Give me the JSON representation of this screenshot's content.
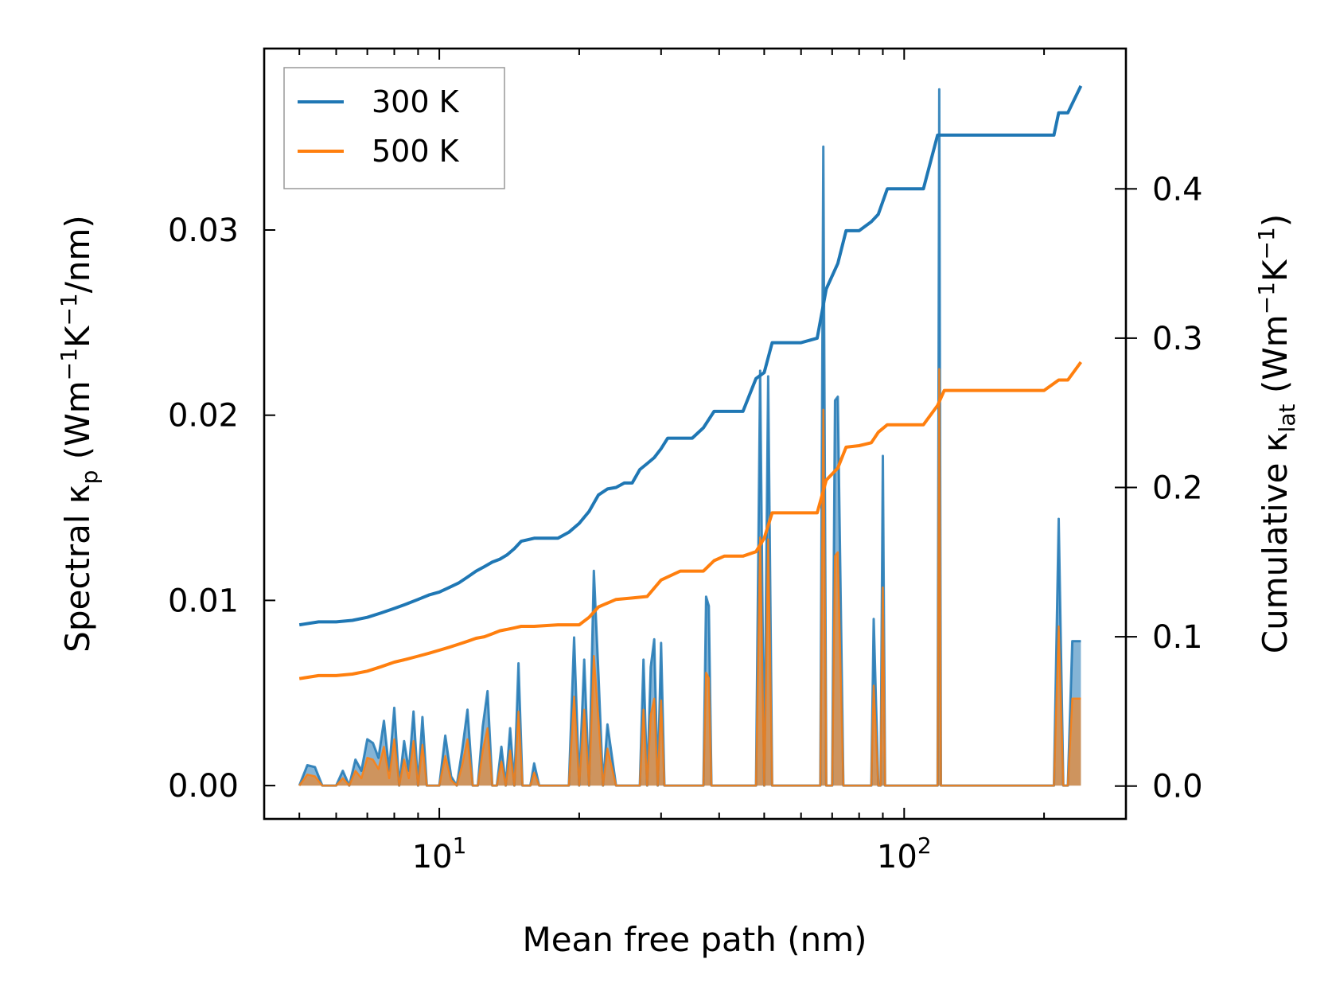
{
  "chart_data": {
    "type": "line",
    "xscale": "log",
    "xlim": [
      4.2,
      300
    ],
    "ylim_left": [
      -0.0018,
      0.0398
    ],
    "ylim_right": [
      -0.022,
      0.494
    ],
    "xlabel": "Mean free path (nm)",
    "ylabel_left": {
      "main": "Spectral κ",
      "sub": "p",
      "unit_prefix": " (Wm",
      "exp1": "−1",
      "unit_mid": "K",
      "exp2": "−1",
      "unit_suffix": "/nm)"
    },
    "ylabel_right": {
      "main": "Cumulative κ",
      "sub": "lat",
      "unit_prefix": " (Wm",
      "exp1": "−1",
      "unit_mid": "K",
      "exp2": "−1",
      "unit_suffix": ")"
    },
    "x_ticks": [
      {
        "value": 10,
        "base": "10",
        "exp": "1"
      },
      {
        "value": 100,
        "base": "10",
        "exp": "2"
      }
    ],
    "y_ticks_left": [
      {
        "value": 0.0,
        "label": "0.00"
      },
      {
        "value": 0.01,
        "label": "0.01"
      },
      {
        "value": 0.02,
        "label": "0.02"
      },
      {
        "value": 0.03,
        "label": "0.03"
      }
    ],
    "y_ticks_right": [
      {
        "value": 0.0,
        "label": "0.0"
      },
      {
        "value": 0.1,
        "label": "0.1"
      },
      {
        "value": 0.2,
        "label": "0.2"
      },
      {
        "value": 0.3,
        "label": "0.3"
      },
      {
        "value": 0.4,
        "label": "0.4"
      }
    ],
    "legend": {
      "position": "upper-left",
      "entries": [
        "300 K",
        "500 K"
      ]
    },
    "colors": {
      "300 K": "#1f77b4",
      "500 K": "#ff7f0e",
      "fill_300": "#1f77b4",
      "fill_500": "#ff7f0e"
    },
    "series": [
      {
        "name": "300 K",
        "axis": "right",
        "kind": "cumulative",
        "x": [
          5.0,
          5.5,
          6.0,
          6.5,
          7.0,
          7.5,
          8.0,
          8.5,
          9.0,
          9.5,
          10.0,
          10.5,
          11.0,
          11.5,
          12.0,
          12.5,
          13.0,
          13.5,
          14.0,
          14.5,
          15.0,
          15.5,
          16.0,
          17.0,
          18.0,
          19.0,
          20.0,
          21.0,
          22.0,
          23.0,
          24.0,
          25.0,
          26.0,
          27.0,
          28.0,
          29.0,
          30.0,
          31.0,
          33.0,
          35.0,
          37.0,
          39.0,
          41.0,
          43.0,
          45.0,
          48.0,
          50.0,
          52.0,
          55.0,
          60.0,
          65.0,
          68.0,
          72.0,
          75.0,
          80.0,
          85.0,
          88.0,
          92.0,
          100.0,
          110.0,
          118.0,
          122.0,
          130.0,
          150.0,
          180.0,
          210.0,
          215.0,
          225.0,
          240.0
        ],
        "values": [
          0.108,
          0.11,
          0.11,
          0.111,
          0.113,
          0.116,
          0.119,
          0.122,
          0.125,
          0.128,
          0.13,
          0.133,
          0.136,
          0.14,
          0.144,
          0.147,
          0.15,
          0.152,
          0.155,
          0.159,
          0.164,
          0.165,
          0.166,
          0.166,
          0.166,
          0.17,
          0.176,
          0.184,
          0.195,
          0.199,
          0.2,
          0.203,
          0.203,
          0.212,
          0.216,
          0.22,
          0.226,
          0.233,
          0.233,
          0.233,
          0.24,
          0.251,
          0.251,
          0.251,
          0.251,
          0.273,
          0.277,
          0.297,
          0.297,
          0.297,
          0.3,
          0.333,
          0.35,
          0.372,
          0.372,
          0.378,
          0.383,
          0.4,
          0.4,
          0.4,
          0.436,
          0.436,
          0.436,
          0.436,
          0.436,
          0.436,
          0.451,
          0.451,
          0.469
        ]
      },
      {
        "name": "500 K",
        "axis": "right",
        "kind": "cumulative",
        "x": [
          5.0,
          5.5,
          6.0,
          6.5,
          7.0,
          7.5,
          8.0,
          8.5,
          9.0,
          9.5,
          10.0,
          10.5,
          11.0,
          11.5,
          12.0,
          12.5,
          13.0,
          13.5,
          14.0,
          14.5,
          15.0,
          16.0,
          18.0,
          20.0,
          21.0,
          22.0,
          24.0,
          26.0,
          28.0,
          30.0,
          33.0,
          37.0,
          39.0,
          41.0,
          45.0,
          48.0,
          50.0,
          52.0,
          55.0,
          60.0,
          65.0,
          68.0,
          72.0,
          75.0,
          80.0,
          85.0,
          88.0,
          92.0,
          100.0,
          110.0,
          118.0,
          122.0,
          150.0,
          200.0,
          215.0,
          225.0,
          240.0
        ],
        "values": [
          0.072,
          0.074,
          0.074,
          0.075,
          0.077,
          0.08,
          0.083,
          0.085,
          0.087,
          0.089,
          0.091,
          0.093,
          0.095,
          0.097,
          0.099,
          0.1,
          0.102,
          0.104,
          0.105,
          0.106,
          0.107,
          0.107,
          0.108,
          0.108,
          0.113,
          0.12,
          0.125,
          0.126,
          0.127,
          0.138,
          0.144,
          0.144,
          0.151,
          0.154,
          0.154,
          0.157,
          0.166,
          0.183,
          0.183,
          0.183,
          0.183,
          0.205,
          0.213,
          0.227,
          0.228,
          0.23,
          0.237,
          0.242,
          0.242,
          0.242,
          0.255,
          0.265,
          0.265,
          0.265,
          0.272,
          0.272,
          0.284
        ]
      },
      {
        "name": "300 K",
        "axis": "left",
        "kind": "spectral",
        "x": [
          5.0,
          5.2,
          5.4,
          5.6,
          5.8,
          6.0,
          6.2,
          6.4,
          6.6,
          6.8,
          7.0,
          7.2,
          7.4,
          7.6,
          7.8,
          8.0,
          8.2,
          8.4,
          8.6,
          8.8,
          9.0,
          9.2,
          9.4,
          9.6,
          9.8,
          10.0,
          10.3,
          10.6,
          10.9,
          11.2,
          11.5,
          11.8,
          12.1,
          12.4,
          12.7,
          13.0,
          13.3,
          13.6,
          13.9,
          14.2,
          14.5,
          14.8,
          15.1,
          15.4,
          15.7,
          16.0,
          16.4,
          16.8,
          17.2,
          18.0,
          19.0,
          19.5,
          20.0,
          20.5,
          21.0,
          21.5,
          22.0,
          22.5,
          23.0,
          24.0,
          25.0,
          26.0,
          27.0,
          27.5,
          28.0,
          28.5,
          29.0,
          29.5,
          30.0,
          30.5,
          31.0,
          32.0,
          33.0,
          34.0,
          35.0,
          36.0,
          37.0,
          37.5,
          38.0,
          38.5,
          39.0,
          40.0,
          42.0,
          44.0,
          46.0,
          48.0,
          49.0,
          50.0,
          51.0,
          52.0,
          53.0,
          54.0,
          55.0,
          60.0,
          64.0,
          66.0,
          67.0,
          68.0,
          70.0,
          71.0,
          72.0,
          74.0,
          76.0,
          80.0,
          83.0,
          85.0,
          86.0,
          88.0,
          89.0,
          90.0,
          91.0,
          93.0,
          100.0,
          110.0,
          115.0,
          118.0,
          119.0,
          120.0,
          121.0,
          122.0,
          125.0,
          130.0,
          150.0,
          180.0,
          200.0,
          205.0,
          210.0,
          215.0,
          220.0,
          225.0,
          230.0,
          235.0,
          240.0
        ],
        "values": [
          0.0,
          0.0011,
          0.001,
          0.0,
          0.0,
          0.0,
          0.0008,
          0.0,
          0.0014,
          0.0008,
          0.0025,
          0.0023,
          0.0015,
          0.0035,
          0.0008,
          0.0042,
          0.0,
          0.0024,
          0.0008,
          0.004,
          0.0,
          0.0037,
          0.0,
          0.0,
          0.0,
          0.0,
          0.0027,
          0.0005,
          0.0,
          0.0019,
          0.0041,
          0.0,
          0.0,
          0.0032,
          0.0051,
          0.0,
          0.0,
          0.0021,
          0.0,
          0.0031,
          0.0,
          0.0066,
          0.0,
          0.0,
          0.0,
          0.0012,
          0.0,
          0.0,
          0.0,
          0.0,
          0.0,
          0.008,
          0.0,
          0.0068,
          0.0,
          0.0116,
          0.006,
          0.0,
          0.0033,
          0.0,
          0.0,
          0.0,
          0.0,
          0.0068,
          0.0,
          0.0064,
          0.0079,
          0.0,
          0.0077,
          0.0,
          0.0,
          0.0,
          0.0,
          0.0,
          0.0,
          0.0,
          0.0,
          0.0102,
          0.0097,
          0.0,
          0.0,
          0.0,
          0.0,
          0.0,
          0.0,
          0.0,
          0.0224,
          0.0,
          0.0221,
          0.0,
          0.0,
          0.0,
          0.0,
          0.0,
          0.0,
          0.0,
          0.0345,
          0.0,
          0.0,
          0.0208,
          0.021,
          0.0,
          0.0,
          0.0,
          0.0,
          0.0,
          0.009,
          0.0,
          0.0,
          0.0178,
          0.0,
          0.0,
          0.0,
          0.0,
          0.0,
          0.0,
          0.0376,
          0.0,
          0.0,
          0.0,
          0.0,
          0.0,
          0.0,
          0.0,
          0.0,
          0.0,
          0.0,
          0.0144,
          0.0,
          0.0,
          0.0078,
          0.0078,
          0.0078
        ]
      },
      {
        "name": "500 K",
        "axis": "left",
        "kind": "spectral",
        "x": [
          5.0,
          5.2,
          5.4,
          5.6,
          5.8,
          6.0,
          6.2,
          6.4,
          6.6,
          6.8,
          7.0,
          7.2,
          7.4,
          7.6,
          7.8,
          8.0,
          8.2,
          8.4,
          8.6,
          8.8,
          9.0,
          9.2,
          9.4,
          9.6,
          9.8,
          10.0,
          10.3,
          10.6,
          10.9,
          11.2,
          11.5,
          11.8,
          12.1,
          12.4,
          12.7,
          13.0,
          13.3,
          13.6,
          13.9,
          14.2,
          14.5,
          14.8,
          15.1,
          15.4,
          15.7,
          16.0,
          16.4,
          16.8,
          17.2,
          18.0,
          19.0,
          19.5,
          20.0,
          20.5,
          21.0,
          21.5,
          22.0,
          22.5,
          23.0,
          24.0,
          25.0,
          26.0,
          27.0,
          27.5,
          28.0,
          28.5,
          29.0,
          29.5,
          30.0,
          30.5,
          31.0,
          32.0,
          33.0,
          34.0,
          35.0,
          36.0,
          37.0,
          37.5,
          38.0,
          38.5,
          39.0,
          40.0,
          42.0,
          44.0,
          46.0,
          48.0,
          49.0,
          50.0,
          51.0,
          52.0,
          53.0,
          54.0,
          55.0,
          60.0,
          64.0,
          66.0,
          67.0,
          68.0,
          70.0,
          71.0,
          72.0,
          74.0,
          76.0,
          80.0,
          83.0,
          85.0,
          86.0,
          88.0,
          89.0,
          90.0,
          91.0,
          93.0,
          100.0,
          110.0,
          115.0,
          118.0,
          119.0,
          120.0,
          121.0,
          122.0,
          125.0,
          130.0,
          150.0,
          180.0,
          200.0,
          205.0,
          210.0,
          215.0,
          220.0,
          225.0,
          230.0,
          235.0,
          240.0
        ],
        "values": [
          0.0,
          0.0006,
          0.0005,
          0.0,
          0.0,
          0.0,
          0.0004,
          0.0,
          0.0008,
          0.0004,
          0.0015,
          0.0014,
          0.0009,
          0.0021,
          0.0004,
          0.0025,
          0.0,
          0.0014,
          0.0004,
          0.0024,
          0.0,
          0.0022,
          0.0,
          0.0,
          0.0,
          0.0,
          0.0016,
          0.0003,
          0.0,
          0.0011,
          0.0025,
          0.0,
          0.0,
          0.0019,
          0.0031,
          0.0,
          0.0,
          0.0013,
          0.0,
          0.0019,
          0.0,
          0.004,
          0.0,
          0.0,
          0.0,
          0.0007,
          0.0,
          0.0,
          0.0,
          0.0,
          0.0,
          0.0048,
          0.0,
          0.0041,
          0.0,
          0.007,
          0.0036,
          0.0,
          0.002,
          0.0,
          0.0,
          0.0,
          0.0,
          0.0041,
          0.0,
          0.0038,
          0.0047,
          0.0,
          0.0046,
          0.0,
          0.0,
          0.0,
          0.0,
          0.0,
          0.0,
          0.0,
          0.0,
          0.0061,
          0.0058,
          0.0,
          0.0,
          0.0,
          0.0,
          0.0,
          0.0,
          0.0,
          0.0134,
          0.0,
          0.0133,
          0.0,
          0.0,
          0.0,
          0.0,
          0.0,
          0.0,
          0.0,
          0.0203,
          0.0,
          0.0,
          0.0124,
          0.0126,
          0.0,
          0.0,
          0.0,
          0.0,
          0.0,
          0.0054,
          0.0,
          0.0,
          0.0107,
          0.0,
          0.0,
          0.0,
          0.0,
          0.0,
          0.0,
          0.0225,
          0.0,
          0.0,
          0.0,
          0.0,
          0.0,
          0.0,
          0.0,
          0.0,
          0.0,
          0.0,
          0.0086,
          0.0,
          0.0,
          0.0047,
          0.0047,
          0.0047
        ]
      }
    ]
  }
}
